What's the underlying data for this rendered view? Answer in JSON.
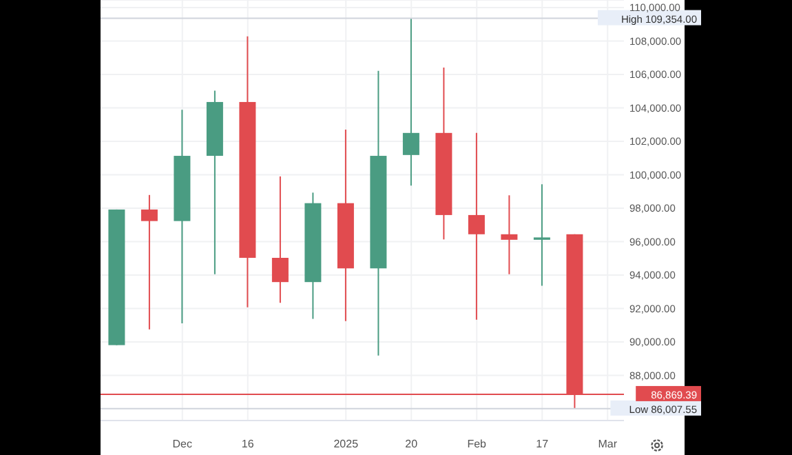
{
  "chart_data": {
    "type": "candlestick",
    "categories": [
      null,
      null,
      "Dec",
      null,
      "16",
      null,
      null,
      "2025",
      null,
      "20",
      null,
      "Feb",
      null,
      "17",
      null,
      "Mar"
    ],
    "ohlc": [
      [
        89810,
        97920,
        89810,
        97920
      ],
      [
        97920,
        98790,
        90750,
        97230
      ],
      [
        97230,
        103880,
        91110,
        101130
      ],
      [
        101130,
        105030,
        94050,
        104350
      ],
      [
        104350,
        108270,
        92070,
        95030
      ],
      [
        95030,
        99900,
        92340,
        93580
      ],
      [
        93580,
        98930,
        91380,
        98300
      ],
      [
        98300,
        102700,
        91250,
        94400
      ],
      [
        94400,
        106210,
        89190,
        101130
      ],
      [
        101180,
        109354,
        99350,
        102500
      ],
      [
        102500,
        106410,
        96130,
        97590
      ],
      [
        97590,
        102500,
        91330,
        96440
      ],
      [
        96440,
        98770,
        94050,
        96110
      ],
      [
        96110,
        99430,
        93360,
        96250
      ],
      [
        96440,
        96440,
        86007.55,
        86869.39
      ],
      null
    ],
    "colors": [
      "#4a9c82",
      "#e14b4f",
      "#4a9c82",
      "#4a9c82",
      "#e14b4f",
      "#e14b4f",
      "#4a9c82",
      "#e14b4f",
      "#4a9c82",
      "#4a9c82",
      "#e14b4f",
      "#e14b4f",
      "#e14b4f",
      "#4a9c82",
      "#e14b4f",
      null
    ],
    "ylim": [
      85300,
      110450
    ],
    "yticks": [
      {
        "value": 88000,
        "label": "88,000.00"
      },
      {
        "value": 90000,
        "label": "90,000.00"
      },
      {
        "value": 92000,
        "label": "92,000.00"
      },
      {
        "value": 94000,
        "label": "94,000.00"
      },
      {
        "value": 96000,
        "label": "96,000.00"
      },
      {
        "value": 98000,
        "label": "98,000.00"
      },
      {
        "value": 100000,
        "label": "100,000.00"
      },
      {
        "value": 102000,
        "label": "102,000.00"
      },
      {
        "value": 104000,
        "label": "104,000.00"
      },
      {
        "value": 106000,
        "label": "106,000.00"
      },
      {
        "value": 108000,
        "label": "108,000.00"
      },
      {
        "value": 110000,
        "label": "110,000.00"
      }
    ],
    "ref_lines": [
      {
        "axis": "y",
        "value": 109354,
        "label": "High 109,354.00",
        "color": "#d0d4dc"
      },
      {
        "axis": "y",
        "value": 86007.55,
        "label": "Low 86,007.55",
        "color": "#d0d4dc"
      },
      {
        "axis": "y",
        "value": 86869.39,
        "label": "86,869.39",
        "color": "#e14b4f"
      }
    ],
    "grid": true
  }
}
